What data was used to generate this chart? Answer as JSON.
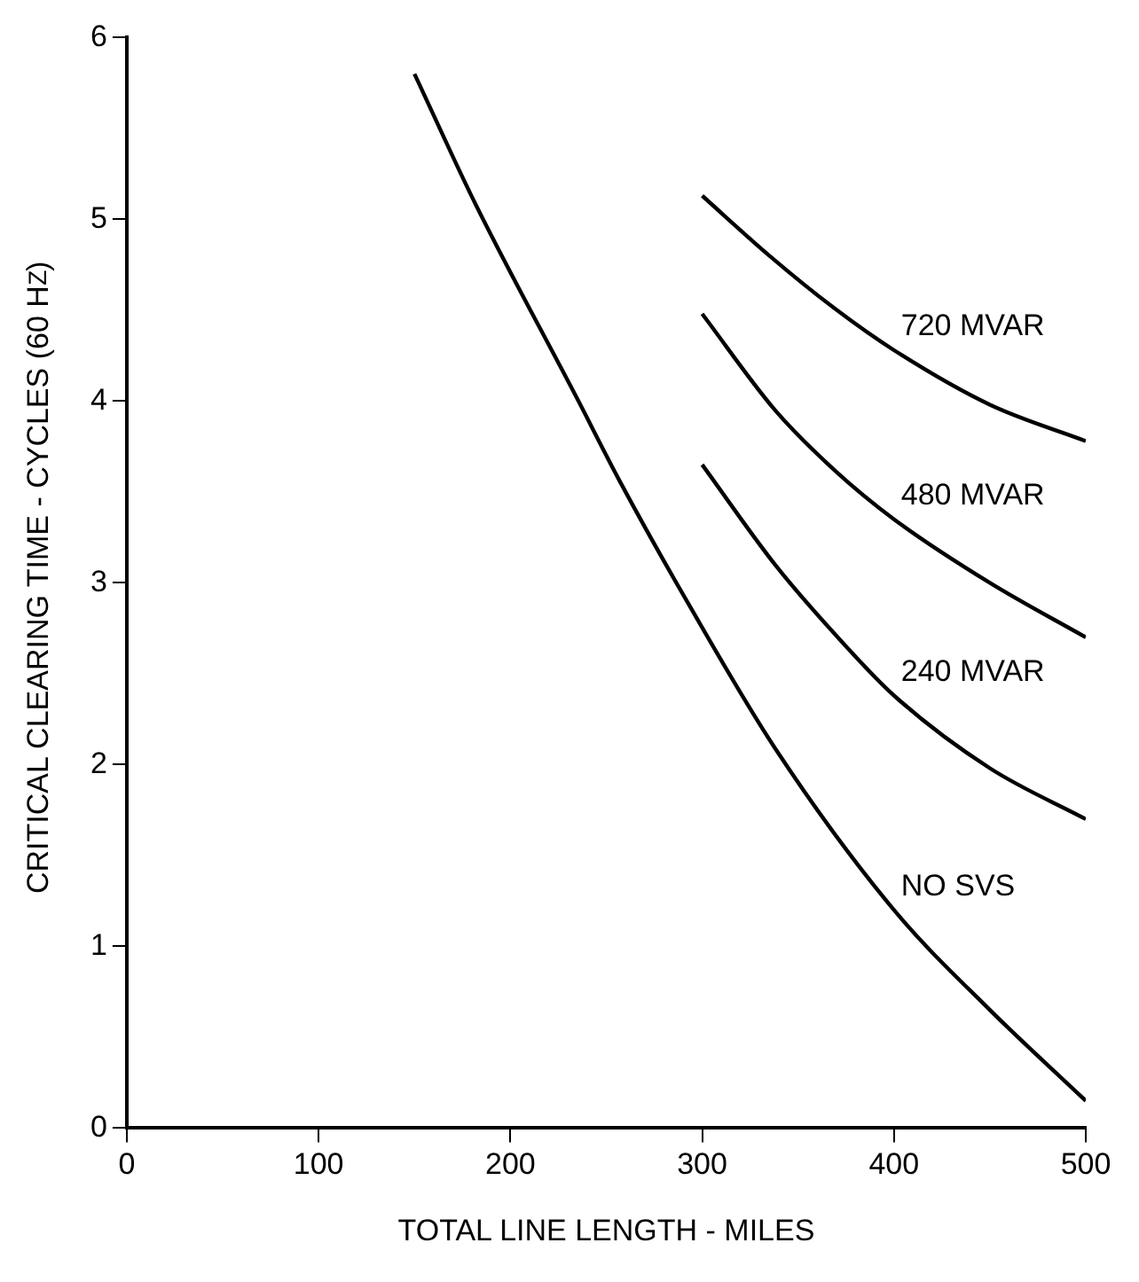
{
  "chart_data": {
    "type": "line",
    "xlabel": "TOTAL LINE LENGTH - MILES",
    "ylabel": "CRITICAL CLEARING TIME - CYCLES (60 H$_{Z}$)",
    "xlim": [
      0,
      500
    ],
    "xticks": [
      0,
      100,
      200,
      300,
      400,
      500
    ],
    "ylim": [
      0,
      6
    ],
    "yticks": [
      0,
      1,
      2,
      3,
      4,
      5,
      6
    ],
    "grid": false,
    "legend": false,
    "marker": "none",
    "line_style": "solid",
    "series": [
      {
        "name": "720 MVAR",
        "color": "#000000",
        "x": [
          300,
          335,
          369,
          400,
          450,
          500
        ],
        "values": [
          5.13,
          4.8,
          4.51,
          4.28,
          3.98,
          3.78
        ]
      },
      {
        "name": "480 MVAR",
        "color": "#000000",
        "x": [
          300,
          338,
          369,
          400,
          450,
          500
        ],
        "values": [
          4.48,
          3.95,
          3.62,
          3.35,
          3.0,
          2.7
        ]
      },
      {
        "name": "240 MVAR",
        "color": "#000000",
        "x": [
          300,
          338,
          369,
          400,
          450,
          500
        ],
        "values": [
          3.65,
          3.1,
          2.72,
          2.38,
          1.98,
          1.7
        ]
      },
      {
        "name": "NO SVS",
        "color": "#000000",
        "x": [
          150,
          182,
          235,
          257,
          292,
          338,
          400,
          450,
          500
        ],
        "values": [
          5.8,
          5.08,
          4.01,
          3.56,
          2.9,
          2.09,
          1.2,
          0.65,
          0.15
        ]
      }
    ]
  }
}
